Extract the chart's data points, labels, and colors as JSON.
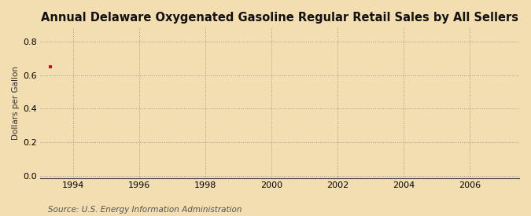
{
  "title": "Annual Delaware Oxygenated Gasoline Regular Retail Sales by All Sellers",
  "ylabel": "Dollars per Gallon",
  "source": "Source: U.S. Energy Information Administration",
  "background_color": "#f2deb0",
  "plot_background_color": "#f2deb0",
  "data_x": [
    1993.3
  ],
  "data_y": [
    0.647
  ],
  "data_color": "#cc1111",
  "xlim": [
    1993.0,
    2007.5
  ],
  "ylim": [
    -0.01,
    0.88
  ],
  "xticks": [
    1994,
    1996,
    1998,
    2000,
    2002,
    2004,
    2006
  ],
  "yticks": [
    0.0,
    0.2,
    0.4,
    0.6,
    0.8
  ],
  "grid_color": "#999999",
  "grid_linestyle": ":",
  "title_fontsize": 10.5,
  "label_fontsize": 7.5,
  "tick_fontsize": 8,
  "source_fontsize": 7.5
}
